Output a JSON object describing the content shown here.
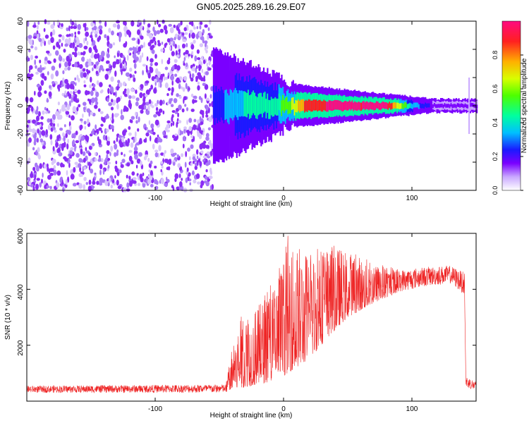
{
  "title": "GN05.2025.289.16.29.E07",
  "chart_data": [
    {
      "type": "heatmap",
      "name": "spectrogram",
      "xlabel": "Height of straight line (km)",
      "ylabel": "Frequency (Hz)",
      "xlim": [
        -200,
        150
      ],
      "ylim": [
        -60,
        60
      ],
      "xticks": [
        -100,
        0,
        100
      ],
      "yticks": [
        -60,
        -40,
        -20,
        0,
        20,
        40,
        60
      ],
      "noise_region_x": [
        -200,
        -55
      ],
      "signal": [
        {
          "x": -55,
          "amplitude": 0.2
        },
        {
          "x": -45,
          "amplitude": 0.25
        },
        {
          "x": -30,
          "amplitude": 0.35
        },
        {
          "x": -15,
          "amplitude": 0.4
        },
        {
          "x": 0,
          "amplitude": 0.45
        },
        {
          "x": 10,
          "amplitude": 0.65
        },
        {
          "x": 20,
          "amplitude": 0.85
        },
        {
          "x": 40,
          "amplitude": 0.9
        },
        {
          "x": 60,
          "amplitude": 0.88
        },
        {
          "x": 80,
          "amplitude": 0.9
        },
        {
          "x": 100,
          "amplitude": 0.3
        },
        {
          "x": 120,
          "amplitude": 0.1
        },
        {
          "x": 146,
          "amplitude": 0.1
        }
      ],
      "colorbar": {
        "label": "Normalized spectral amplitude",
        "ticks": [
          "0.0",
          "0.2",
          "0.4",
          "0.6",
          "0.8"
        ],
        "range": [
          0,
          1
        ]
      }
    },
    {
      "type": "line",
      "name": "snr",
      "xlabel": "Height of straight line (km)",
      "ylabel": "SNR (10 * v/v)",
      "xlim": [
        -200,
        150
      ],
      "ylim": [
        0,
        6000
      ],
      "xticks": [
        -100,
        0,
        100
      ],
      "yticks": [
        2000,
        4000,
        6000
      ],
      "color": "#ee2222",
      "envelope": [
        {
          "x": -200,
          "base": 300,
          "peak": 550
        },
        {
          "x": -45,
          "base": 300,
          "peak": 600
        },
        {
          "x": -42,
          "base": 400,
          "peak": 1500
        },
        {
          "x": -35,
          "base": 450,
          "peak": 3000
        },
        {
          "x": -20,
          "base": 600,
          "peak": 3400
        },
        {
          "x": -10,
          "base": 700,
          "peak": 4200
        },
        {
          "x": 0,
          "base": 900,
          "peak": 5200
        },
        {
          "x": 3,
          "base": 1000,
          "peak": 6000
        },
        {
          "x": 20,
          "base": 1500,
          "peak": 5300
        },
        {
          "x": 35,
          "base": 2300,
          "peak": 5700
        },
        {
          "x": 50,
          "base": 3000,
          "peak": 5400
        },
        {
          "x": 70,
          "base": 3500,
          "peak": 5000
        },
        {
          "x": 90,
          "base": 3900,
          "peak": 4700
        },
        {
          "x": 110,
          "base": 4100,
          "peak": 4800
        },
        {
          "x": 130,
          "base": 4200,
          "peak": 4850
        },
        {
          "x": 141,
          "base": 3800,
          "peak": 4600
        },
        {
          "x": 142,
          "base": 500,
          "peak": 900
        },
        {
          "x": 150,
          "base": 350,
          "peak": 700
        }
      ]
    }
  ]
}
